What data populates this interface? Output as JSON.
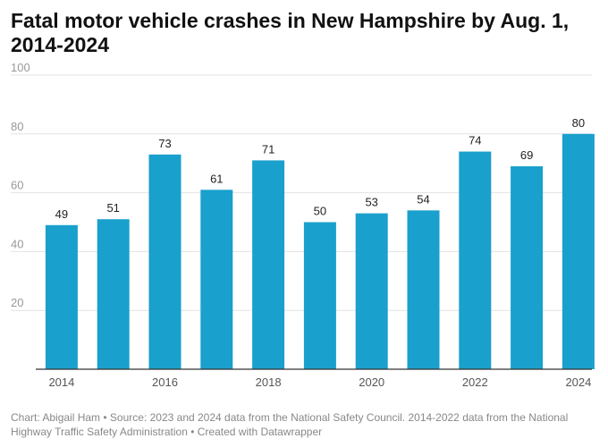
{
  "header": {
    "title": "Fatal motor vehicle crashes in New Hampshire by Aug. 1, 2014-2024"
  },
  "footer": {
    "chart_by": "Chart: Abigail Ham",
    "separator": " • ",
    "source": "Source: 2023 and 2024 data from the National Safety Council. 2014-2022 data from the National Highway Traffic Safety Administration",
    "created_with": "Created with Datawrapper"
  },
  "colors": {
    "bar": "#1aa0cc",
    "grid": "#e2e2e2",
    "axis": "#333333"
  },
  "chart_data": {
    "type": "bar",
    "title": "Fatal motor vehicle crashes in New Hampshire by Aug. 1, 2014-2024",
    "xlabel": "",
    "ylabel": "",
    "categories": [
      "2014",
      "2015",
      "2016",
      "2017",
      "2018",
      "2019",
      "2020",
      "2021",
      "2022",
      "2023",
      "2024"
    ],
    "values": [
      49,
      51,
      73,
      61,
      71,
      50,
      53,
      54,
      74,
      69,
      80
    ],
    "data_labels": [
      "49",
      "51",
      "73",
      "61",
      "71",
      "50",
      "53",
      "54",
      "74",
      "69",
      "80"
    ],
    "x_tick_labels": [
      "2014",
      "",
      "2016",
      "",
      "2018",
      "",
      "2020",
      "",
      "2022",
      "",
      "2024"
    ],
    "y_ticks": [
      20,
      40,
      60,
      80,
      100
    ],
    "y_tick_labels": [
      "20",
      "40",
      "60",
      "80",
      "100"
    ],
    "ylim": [
      0,
      100
    ],
    "grid": true,
    "legend": "none"
  }
}
